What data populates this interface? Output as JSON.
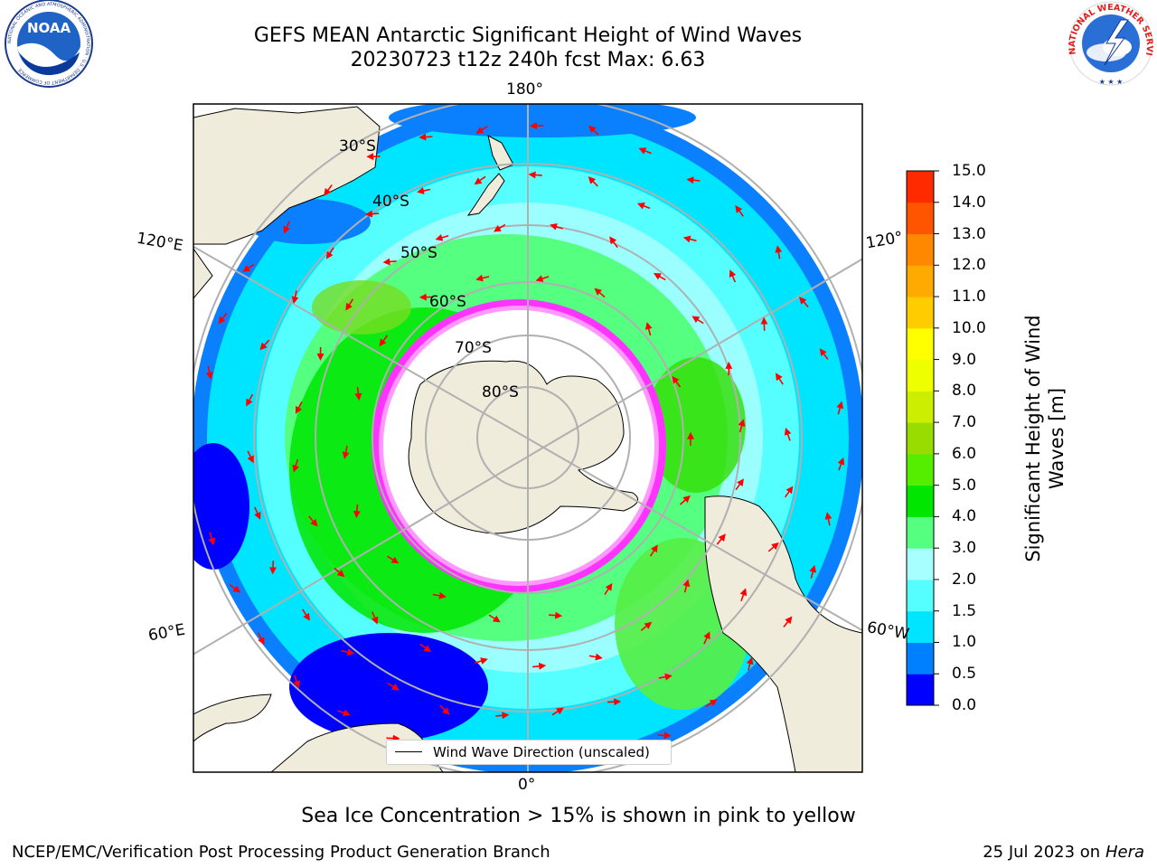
{
  "title": {
    "line1": "GEFS MEAN Antarctic Significant Height of Wind Waves",
    "line2": "20230723 t12z 240h fcst   Max: 6.63"
  },
  "map": {
    "projection": "south-polar-stereographic",
    "lon_labels": {
      "top": "180°",
      "bottom": "0°",
      "upper_left": "120°E",
      "upper_right": "120°",
      "lower_left": "60°E",
      "lower_right": "60°W"
    },
    "lat_labels": [
      "30°S",
      "40°S",
      "50°S",
      "60°S",
      "70°S",
      "80°S"
    ],
    "land_color": "#efecdc",
    "ice_edge_colors": [
      "#ff33ff",
      "#ff88ff",
      "#ffee44"
    ],
    "vector_color": "#ff0000"
  },
  "legend": {
    "label": "Wind Wave Direction (unscaled)"
  },
  "colorbar": {
    "label": "Significant Height of Wind Waves [m]",
    "ticks": [
      "0.0",
      "0.5",
      "1.0",
      "1.5",
      "2.0",
      "3.0",
      "4.0",
      "5.0",
      "6.0",
      "7.0",
      "8.0",
      "9.0",
      "10.0",
      "11.0",
      "12.0",
      "13.0",
      "14.0",
      "15.0"
    ],
    "colors": [
      "#0000ff",
      "#0080ff",
      "#00e5ff",
      "#55ffff",
      "#a8ffff",
      "#55ff80",
      "#00e600",
      "#55ee00",
      "#99dd00",
      "#ccee00",
      "#eeff00",
      "#ffff00",
      "#ffcc00",
      "#ffaa00",
      "#ff8800",
      "#ff5500",
      "#ff2a00",
      "#ff0000"
    ]
  },
  "caption": "Sea Ice Concentration > 15% is shown in pink to yellow",
  "footer": {
    "left": "NCEP/EMC/Verification Post Processing Product Generation Branch",
    "right_prefix": "25 Jul 2023 on ",
    "right_machine": "Hera"
  },
  "logos": {
    "noaa": {
      "text": "NOAA",
      "ring_text": "NATIONAL OCEANIC AND ATMOSPHERIC ADMINISTRATION · U.S. DEPARTMENT OF COMMERCE"
    },
    "nws": {
      "ring_text": "NATIONAL WEATHER SERVICE"
    }
  }
}
